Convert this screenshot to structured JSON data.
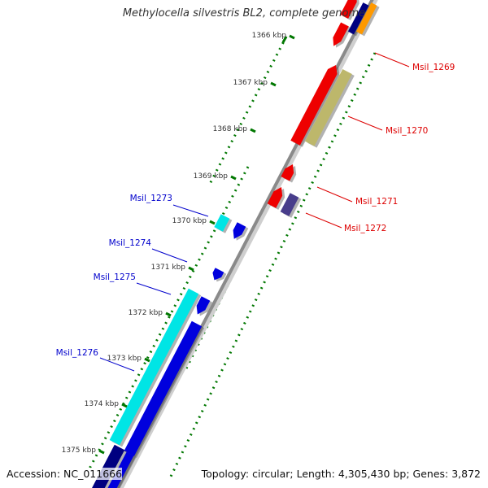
{
  "title": "Methylocella silvestris BL2, complete genome",
  "footer": {
    "accession": "Accession: NC_011666",
    "summary": "Topology: circular; Length: 4,305,430 bp; Genes: 3,872"
  },
  "ticks": [
    "1366 kbp",
    "1367 kbp",
    "1368 kbp",
    "1369 kbp",
    "1370 kbp",
    "1371 kbp",
    "1372 kbp",
    "1373 kbp",
    "1374 kbp",
    "1375 kbp"
  ],
  "gene_labels": {
    "forward": [
      "Msil_1269",
      "Msil_1270",
      "Msil_1271",
      "Msil_1272"
    ],
    "reverse": [
      "Msil_1273",
      "Msil_1274",
      "Msil_1275",
      "Msil_1276"
    ]
  },
  "colors": {
    "forward_label": "#dd0000",
    "reverse_label": "#0000cc",
    "red_gene": "#ee0000",
    "khaki_gene": "#bdb76b",
    "slate_gene": "#483d8b",
    "orange_gene": "#ff9900",
    "blue_gene": "#0000dd",
    "cyan_gene": "#00e5e5",
    "navy_gene": "#000080",
    "backbone": "#8a8a8a",
    "dots": "#007700",
    "tick_label": "#333333"
  }
}
